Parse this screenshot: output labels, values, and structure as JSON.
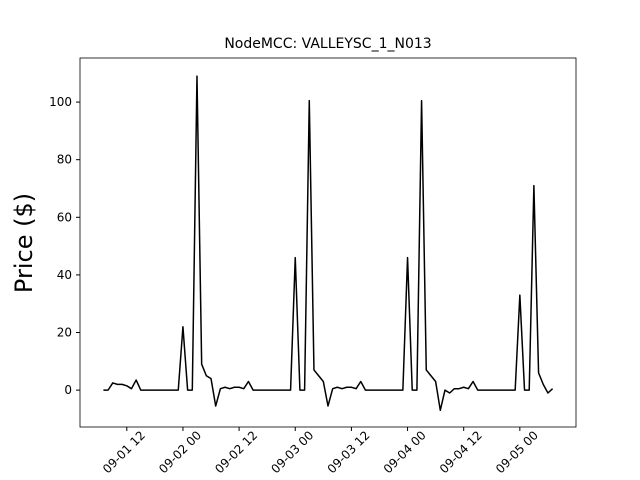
{
  "chart_data": {
    "type": "line",
    "title": "NodeMCC: VALLEYSC_1_N013",
    "y_label": "Price ($)",
    "x": [
      "09-01 07",
      "09-01 08",
      "09-01 09",
      "09-01 10",
      "09-01 11",
      "09-01 12",
      "09-01 13",
      "09-01 14",
      "09-01 15",
      "09-01 16",
      "09-01 17",
      "09-01 18",
      "09-01 19",
      "09-01 20",
      "09-01 21",
      "09-01 22",
      "09-01 23",
      "09-02 00",
      "09-02 01",
      "09-02 02",
      "09-02 03",
      "09-02 04",
      "09-02 05",
      "09-02 06",
      "09-02 07",
      "09-02 08",
      "09-02 09",
      "09-02 10",
      "09-02 11",
      "09-02 12",
      "09-02 13",
      "09-02 14",
      "09-02 15",
      "09-02 16",
      "09-02 17",
      "09-02 18",
      "09-02 19",
      "09-02 20",
      "09-02 21",
      "09-02 22",
      "09-02 23",
      "09-03 00",
      "09-03 01",
      "09-03 02",
      "09-03 03",
      "09-03 04",
      "09-03 05",
      "09-03 06",
      "09-03 07",
      "09-03 08",
      "09-03 09",
      "09-03 10",
      "09-03 11",
      "09-03 12",
      "09-03 13",
      "09-03 14",
      "09-03 15",
      "09-03 16",
      "09-03 17",
      "09-03 18",
      "09-03 19",
      "09-03 20",
      "09-03 21",
      "09-03 22",
      "09-03 23",
      "09-04 00",
      "09-04 01",
      "09-04 02",
      "09-04 03",
      "09-04 04",
      "09-04 05",
      "09-04 06",
      "09-04 07",
      "09-04 08",
      "09-04 09",
      "09-04 10",
      "09-04 11",
      "09-04 12",
      "09-04 13",
      "09-04 14",
      "09-04 15",
      "09-04 16",
      "09-04 17",
      "09-04 18",
      "09-04 19",
      "09-04 20",
      "09-04 21",
      "09-04 22",
      "09-04 23",
      "09-05 00",
      "09-05 01",
      "09-05 02",
      "09-05 03",
      "09-05 04",
      "09-05 05",
      "09-05 06",
      "09-05 07"
    ],
    "series": [
      {
        "color": "#000000",
        "values": [
          0,
          0,
          2.5,
          2,
          2,
          1.5,
          0.5,
          3.5,
          0,
          0,
          0,
          0,
          0,
          0,
          0,
          0,
          0,
          22,
          0,
          0,
          109,
          9,
          5,
          4,
          -5.5,
          0.5,
          1,
          0.5,
          1,
          1,
          0.5,
          3,
          0,
          0,
          0,
          0,
          0,
          0,
          0,
          0,
          0,
          46,
          0,
          0,
          100.5,
          7,
          5,
          3,
          -5.5,
          0.5,
          1,
          0.5,
          1,
          1,
          0.5,
          3,
          0,
          0,
          0,
          0,
          0,
          0,
          0,
          0,
          0,
          46,
          0,
          0,
          100.5,
          7,
          5,
          3,
          -7,
          0,
          -1,
          0.5,
          0.5,
          1,
          0.5,
          3,
          0,
          0,
          0,
          0,
          0,
          0,
          0,
          0,
          0,
          33,
          0,
          0,
          71,
          6,
          2,
          -1,
          0.5
        ]
      }
    ],
    "xlim": [
      "09-01 02",
      "09-05 12"
    ],
    "xticks": [
      "09-01 12",
      "09-02 00",
      "09-02 12",
      "09-03 00",
      "09-03 12",
      "09-04 00",
      "09-04 12",
      "09-05 00"
    ],
    "ylim": [
      -12.8,
      115.3
    ],
    "yticks": [
      0,
      20,
      40,
      60,
      80,
      100
    ]
  }
}
